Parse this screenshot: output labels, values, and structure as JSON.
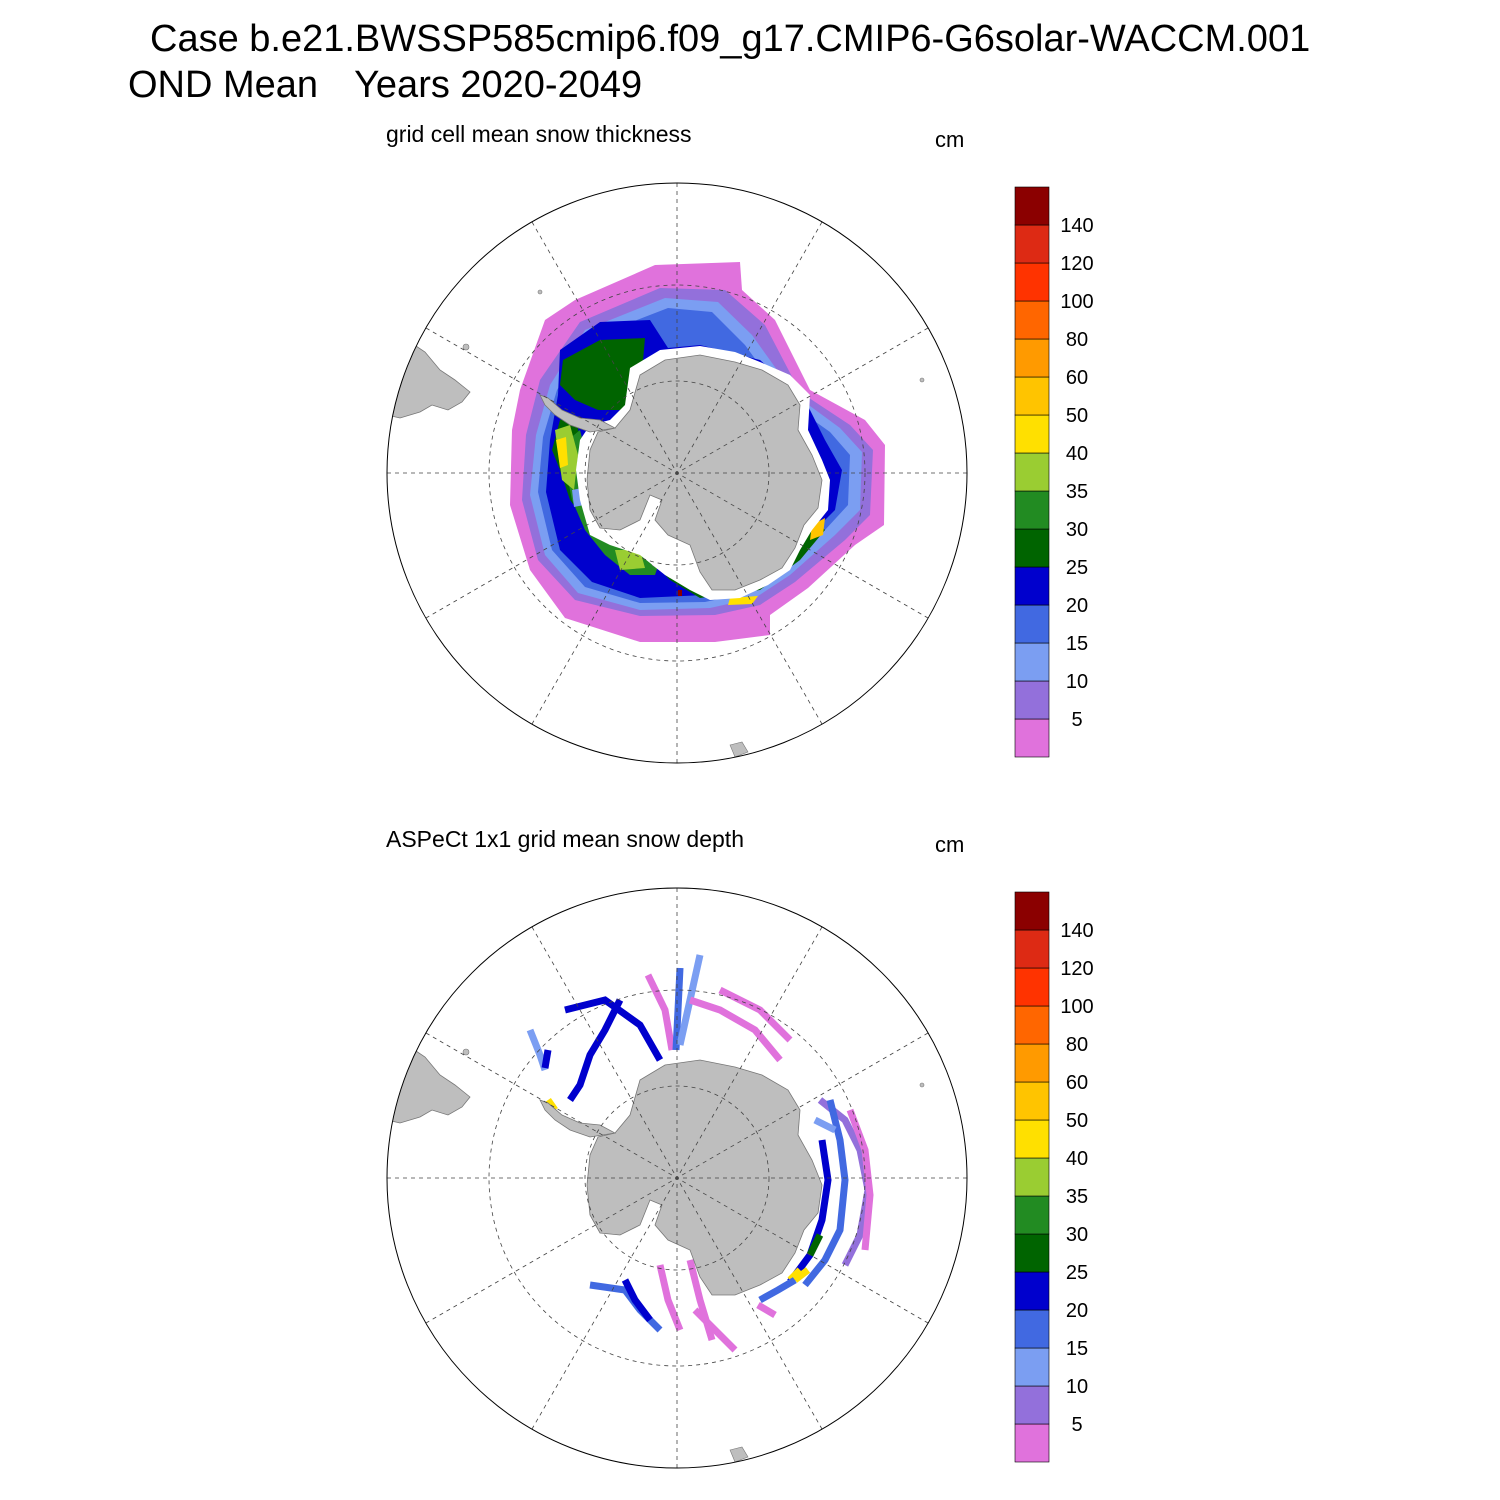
{
  "header": {
    "case_line": "Case b.e21.BWSSP585cmip6.f09_g17.CMIP6-G6solar-WACCM.001",
    "season_label": "OND Mean",
    "years_label": "Years 2020-2049"
  },
  "panels": [
    {
      "title": "grid cell mean snow thickness",
      "units": "cm"
    },
    {
      "title": "ASPeCt 1x1 grid mean snow depth",
      "units": "cm"
    }
  ],
  "colorbar": {
    "tick_labels": [
      "5",
      "10",
      "15",
      "20",
      "25",
      "30",
      "35",
      "40",
      "50",
      "60",
      "80",
      "100",
      "120",
      "140"
    ],
    "colors": [
      "#e072dc",
      "#9370db",
      "#7b9ef2",
      "#4169e1",
      "#0000cd",
      "#006400",
      "#228b22",
      "#9acd32",
      "#ffe000",
      "#ffc400",
      "#ff9a00",
      "#ff6600",
      "#ff3300",
      "#dd2a14",
      "#8b0000"
    ]
  },
  "map": {
    "land_color": "#bebebe",
    "ocean_color": "#ffffff",
    "grid": "dashed"
  },
  "chart_data": [
    {
      "type": "heatmap",
      "title": "grid cell mean snow thickness",
      "units": "cm",
      "projection": "south polar stereographic",
      "levels": [
        5,
        10,
        15,
        20,
        25,
        30,
        35,
        40,
        50,
        60,
        80,
        100,
        120,
        140
      ]
    },
    {
      "type": "heatmap",
      "title": "ASPeCt 1x1 grid mean snow depth",
      "units": "cm",
      "projection": "south polar stereographic",
      "levels": [
        5,
        10,
        15,
        20,
        25,
        30,
        35,
        40,
        50,
        60,
        80,
        100,
        120,
        140
      ]
    }
  ]
}
